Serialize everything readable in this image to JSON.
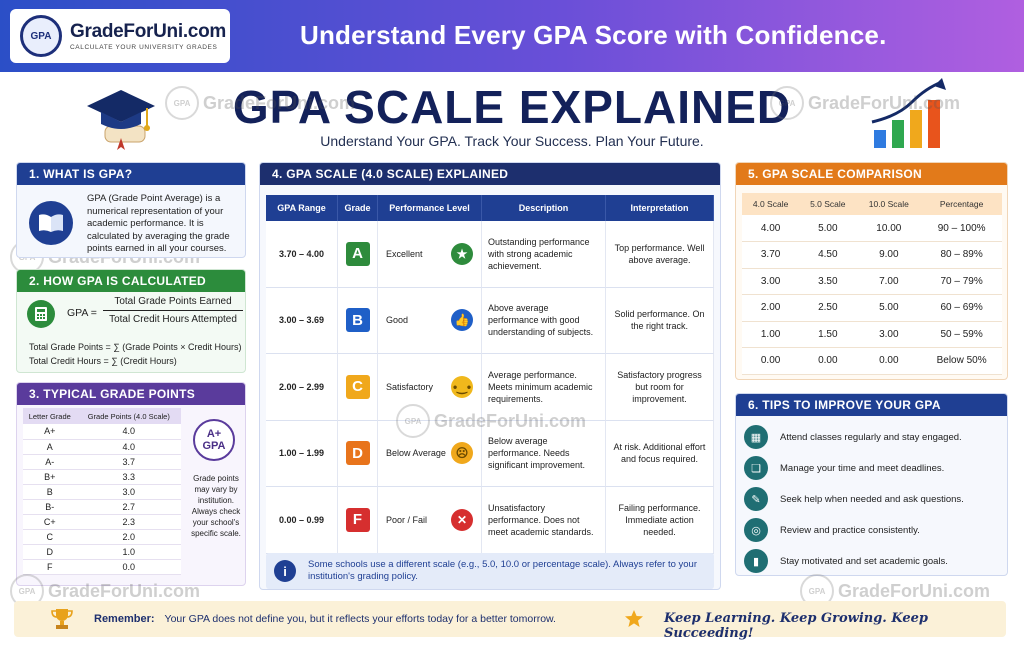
{
  "header": {
    "logo_seal": "GPA",
    "logo_name": "GradeForUni.com",
    "logo_tagline": "CALCULATE YOUR UNIVERSITY GRADES",
    "banner_title": "Understand Every GPA Score with Confidence."
  },
  "hero": {
    "title": "GPA SCALE EXPLAINED",
    "subtitle": "Understand Your GPA. Track Your Success. Plan Your Future."
  },
  "watermark": {
    "seal": "GPA",
    "text": "GradeForUni.com"
  },
  "what_is_gpa": {
    "heading": "1. WHAT IS GPA?",
    "text": "GPA (Grade Point Average) is a numerical representation of your academic performance. It is calculated by averaging the grade points earned in all your courses."
  },
  "how_calculated": {
    "heading": "2. HOW GPA IS CALCULATED",
    "label": "GPA =",
    "numerator": "Total Grade Points Earned",
    "denominator": "Total Credit Hours Attempted",
    "line1": "Total Grade Points = ∑ (Grade Points × Credit Hours)",
    "line2": "Total Credit Hours = ∑ (Credit Hours)"
  },
  "typical_points": {
    "heading": "3. TYPICAL GRADE POINTS",
    "col_letter": "Letter Grade",
    "col_points": "Grade Points (4.0 Scale)",
    "rows": [
      {
        "letter": "A+",
        "points": "4.0"
      },
      {
        "letter": "A",
        "points": "4.0"
      },
      {
        "letter": "A-",
        "points": "3.7"
      },
      {
        "letter": "B+",
        "points": "3.3"
      },
      {
        "letter": "B",
        "points": "3.0"
      },
      {
        "letter": "B-",
        "points": "2.7"
      },
      {
        "letter": "C+",
        "points": "2.3"
      },
      {
        "letter": "C",
        "points": "2.0"
      },
      {
        "letter": "D",
        "points": "1.0"
      },
      {
        "letter": "F",
        "points": "0.0"
      }
    ],
    "badge_line1": "A+",
    "badge_line2": "GPA",
    "note": "Grade points may vary by institution. Always check your school's specific scale."
  },
  "scale": {
    "heading": "4. GPA SCALE (4.0 SCALE) EXPLAINED",
    "headers": {
      "range": "GPA Range",
      "grade": "Grade",
      "level": "Performance Level",
      "desc": "Description",
      "interp": "Interpretation"
    },
    "rows": [
      {
        "range": "3.70 – 4.00",
        "grade": "A",
        "color": "#2e8b3c",
        "level": "Excellent",
        "icon": "star-icon",
        "icon_color": "#2e8b3c",
        "desc": "Outstanding performance with strong academic achievement.",
        "interp": "Top performance. Well above average."
      },
      {
        "range": "3.00 – 3.69",
        "grade": "B",
        "color": "#1f5fc7",
        "level": "Good",
        "icon": "thumbs-up-icon",
        "icon_color": "#1f5fc7",
        "desc": "Above average performance with good understanding of subjects.",
        "interp": "Solid performance. On the right track."
      },
      {
        "range": "2.00 – 2.99",
        "grade": "C",
        "color": "#f0a81c",
        "level": "Satisfactory",
        "icon": "neutral-face-icon",
        "icon_color": "#f0b81c",
        "desc": "Average performance. Meets minimum academic requirements.",
        "interp": "Satisfactory progress but room for improvement."
      },
      {
        "range": "1.00 – 1.99",
        "grade": "D",
        "color": "#e8741c",
        "level": "Below Average",
        "icon": "sad-face-icon",
        "icon_color": "#f0a81c",
        "desc": "Below average performance. Needs significant improvement.",
        "interp": "At risk. Additional effort and focus required."
      },
      {
        "range": "0.00 – 0.99",
        "grade": "F",
        "color": "#d62f2f",
        "level": "Poor / Fail",
        "icon": "x-circle-icon",
        "icon_color": "#d62f2f",
        "desc": "Unsatisfactory performance. Does not meet academic standards.",
        "interp": "Failing performance. Immediate action needed."
      }
    ],
    "note": "Some schools use a different scale (e.g., 5.0, 10.0 or percentage scale). Always refer to your institution's grading policy."
  },
  "comparison": {
    "heading": "5. GPA SCALE COMPARISON",
    "headers": [
      "4.0 Scale",
      "5.0 Scale",
      "10.0 Scale",
      "Percentage"
    ],
    "rows": [
      [
        "4.00",
        "5.00",
        "10.00",
        "90 – 100%"
      ],
      [
        "3.70",
        "4.50",
        "9.00",
        "80 – 89%"
      ],
      [
        "3.00",
        "3.50",
        "7.00",
        "70 – 79%"
      ],
      [
        "2.00",
        "2.50",
        "5.00",
        "60 – 69%"
      ],
      [
        "1.00",
        "1.50",
        "3.00",
        "50 – 59%"
      ],
      [
        "0.00",
        "0.00",
        "0.00",
        "Below 50%"
      ]
    ]
  },
  "tips": {
    "heading": "6. TIPS TO IMPROVE YOUR GPA",
    "items": [
      {
        "icon": "calendar-icon",
        "text": "Attend classes regularly and stay engaged."
      },
      {
        "icon": "book-icon",
        "text": "Manage your time and meet deadlines."
      },
      {
        "icon": "pencil-icon",
        "text": "Seek help when needed and ask questions."
      },
      {
        "icon": "target-icon",
        "text": "Review and practice consistently."
      },
      {
        "icon": "bar-chart-icon",
        "text": "Stay motivated and set academic goals."
      }
    ]
  },
  "footer": {
    "remember_label": "Remember:",
    "remember_text": "Your GPA does not define you, but it reflects your efforts today for a better tomorrow.",
    "slogan": "Keep Learning. Keep Growing. Keep Succeeding!"
  }
}
